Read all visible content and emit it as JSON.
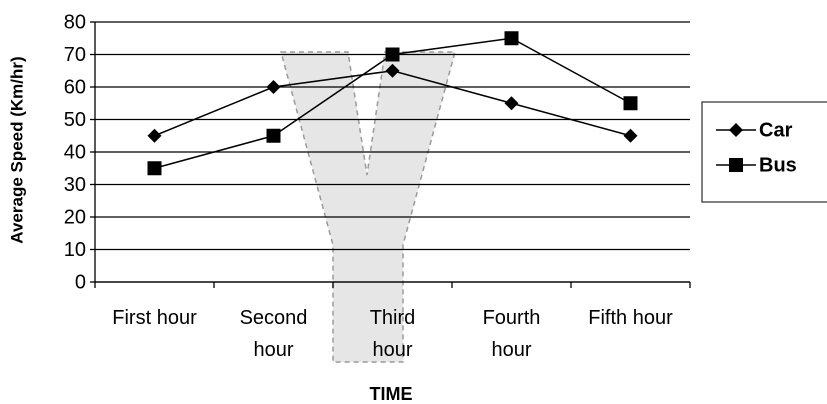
{
  "chart_data": {
    "type": "line",
    "x_label": "TIME",
    "y_label": "Average Speed (Km/hr)",
    "categories": [
      "First hour",
      "Second hour",
      "Third hour",
      "Fourth hour",
      "Fifth hour"
    ],
    "series": [
      {
        "name": "Car",
        "color": "#000000",
        "marker": "diamond",
        "values": [
          45,
          60,
          65,
          55,
          45
        ]
      },
      {
        "name": "Bus",
        "color": "#000000",
        "marker": "square",
        "values": [
          35,
          45,
          70,
          75,
          55
        ]
      }
    ],
    "ylim": [
      0,
      80
    ],
    "yticks": [
      0,
      10,
      20,
      30,
      40,
      50,
      60,
      70,
      80
    ],
    "grid": true,
    "legend": "right"
  }
}
